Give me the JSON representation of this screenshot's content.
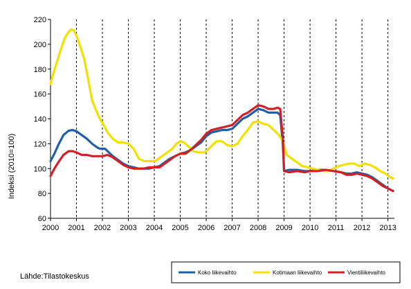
{
  "source": "Lähde:Tilastokeskus",
  "chart_data": {
    "type": "line",
    "ylabel": "Indeksi (2010=100)",
    "xlabel": "",
    "ylim": [
      60,
      220
    ],
    "xlim": [
      2000,
      2013.25
    ],
    "yticks": [
      60,
      80,
      100,
      120,
      140,
      160,
      180,
      200,
      220
    ],
    "xticks": [
      "2000",
      "2001",
      "2002",
      "2003",
      "2004",
      "2005",
      "2006",
      "2007",
      "2008",
      "2009",
      "2010",
      "2011",
      "2012",
      "2013"
    ],
    "grid": "vertical dashed lines at year boundaries",
    "legend_position": "bottom-right",
    "series": [
      {
        "name": "Koko liikevaihto",
        "color": "#1f5fa8",
        "points": [
          [
            2000.0,
            106
          ],
          [
            2000.15,
            112
          ],
          [
            2000.3,
            119
          ],
          [
            2000.5,
            127
          ],
          [
            2000.7,
            130.5
          ],
          [
            2000.85,
            131
          ],
          [
            2001.0,
            130
          ],
          [
            2001.2,
            127
          ],
          [
            2001.4,
            124
          ],
          [
            2001.6,
            120
          ],
          [
            2001.8,
            117
          ],
          [
            2001.9,
            116
          ],
          [
            2002.1,
            116
          ],
          [
            2002.2,
            114
          ],
          [
            2002.4,
            110
          ],
          [
            2002.6,
            107
          ],
          [
            2002.8,
            104
          ],
          [
            2003.0,
            102
          ],
          [
            2003.2,
            101
          ],
          [
            2003.4,
            100
          ],
          [
            2003.6,
            100
          ],
          [
            2003.8,
            100
          ],
          [
            2004.0,
            101
          ],
          [
            2004.2,
            102
          ],
          [
            2004.4,
            105
          ],
          [
            2004.6,
            108
          ],
          [
            2004.8,
            110
          ],
          [
            2005.0,
            112
          ],
          [
            2005.2,
            113
          ],
          [
            2005.4,
            115
          ],
          [
            2005.6,
            118
          ],
          [
            2005.8,
            121
          ],
          [
            2006.0,
            126
          ],
          [
            2006.2,
            129
          ],
          [
            2006.4,
            130
          ],
          [
            2006.6,
            131
          ],
          [
            2006.8,
            131
          ],
          [
            2007.0,
            132
          ],
          [
            2007.2,
            136
          ],
          [
            2007.4,
            140
          ],
          [
            2007.6,
            142
          ],
          [
            2007.8,
            145
          ],
          [
            2008.0,
            148
          ],
          [
            2008.2,
            147
          ],
          [
            2008.4,
            145
          ],
          [
            2008.6,
            145
          ],
          [
            2008.75,
            145
          ],
          [
            2008.85,
            143
          ],
          [
            2008.95,
            120
          ],
          [
            2009.0,
            98
          ],
          [
            2009.2,
            99
          ],
          [
            2009.5,
            99
          ],
          [
            2009.8,
            98
          ],
          [
            2010.0,
            98
          ],
          [
            2010.3,
            99
          ],
          [
            2010.6,
            99
          ],
          [
            2010.9,
            98
          ],
          [
            2011.2,
            97
          ],
          [
            2011.4,
            96
          ],
          [
            2011.6,
            96
          ],
          [
            2011.8,
            97
          ],
          [
            2012.0,
            96
          ],
          [
            2012.2,
            95
          ],
          [
            2012.4,
            93
          ],
          [
            2012.6,
            90
          ],
          [
            2012.8,
            87
          ],
          [
            2013.0,
            84
          ],
          [
            2013.2,
            82
          ]
        ]
      },
      {
        "name": "Kotimaan liikevaihto",
        "color": "#f2e000",
        "points": [
          [
            2000.0,
            168
          ],
          [
            2000.1,
            176
          ],
          [
            2000.25,
            186
          ],
          [
            2000.4,
            196
          ],
          [
            2000.55,
            205
          ],
          [
            2000.7,
            210
          ],
          [
            2000.8,
            212
          ],
          [
            2000.9,
            211
          ],
          [
            2001.0,
            207
          ],
          [
            2001.15,
            198
          ],
          [
            2001.3,
            188
          ],
          [
            2001.45,
            172
          ],
          [
            2001.6,
            155
          ],
          [
            2001.75,
            147
          ],
          [
            2001.9,
            140
          ],
          [
            2002.05,
            135
          ],
          [
            2002.2,
            129
          ],
          [
            2002.4,
            124
          ],
          [
            2002.6,
            121
          ],
          [
            2002.8,
            121
          ],
          [
            2003.0,
            120
          ],
          [
            2003.2,
            116
          ],
          [
            2003.4,
            108
          ],
          [
            2003.6,
            106
          ],
          [
            2003.8,
            106
          ],
          [
            2004.0,
            106
          ],
          [
            2004.1,
            107
          ],
          [
            2004.3,
            110
          ],
          [
            2004.5,
            113
          ],
          [
            2004.7,
            116
          ],
          [
            2004.85,
            120
          ],
          [
            2005.0,
            122
          ],
          [
            2005.15,
            121
          ],
          [
            2005.3,
            118
          ],
          [
            2005.5,
            114
          ],
          [
            2005.7,
            113
          ],
          [
            2005.9,
            113
          ],
          [
            2006.0,
            114
          ],
          [
            2006.2,
            118
          ],
          [
            2006.4,
            122
          ],
          [
            2006.6,
            122
          ],
          [
            2006.8,
            119
          ],
          [
            2007.0,
            118
          ],
          [
            2007.2,
            120
          ],
          [
            2007.4,
            126
          ],
          [
            2007.6,
            131
          ],
          [
            2007.8,
            137
          ],
          [
            2008.0,
            138
          ],
          [
            2008.2,
            136
          ],
          [
            2008.4,
            135
          ],
          [
            2008.6,
            131
          ],
          [
            2008.8,
            127
          ],
          [
            2008.95,
            122
          ],
          [
            2009.1,
            111
          ],
          [
            2009.3,
            108
          ],
          [
            2009.5,
            105
          ],
          [
            2009.7,
            102
          ],
          [
            2009.9,
            101
          ],
          [
            2010.1,
            100
          ],
          [
            2010.3,
            99
          ],
          [
            2010.5,
            98
          ],
          [
            2010.7,
            98
          ],
          [
            2010.9,
            100
          ],
          [
            2011.1,
            102
          ],
          [
            2011.3,
            103
          ],
          [
            2011.5,
            104
          ],
          [
            2011.7,
            104
          ],
          [
            2011.9,
            102
          ],
          [
            2012.1,
            104
          ],
          [
            2012.3,
            103
          ],
          [
            2012.5,
            101
          ],
          [
            2012.7,
            98
          ],
          [
            2012.9,
            96
          ],
          [
            2013.1,
            93
          ],
          [
            2013.2,
            92
          ]
        ]
      },
      {
        "name": "Vientiliikevaihto",
        "color": "#d22027",
        "points": [
          [
            2000.0,
            94
          ],
          [
            2000.15,
            100
          ],
          [
            2000.3,
            105
          ],
          [
            2000.5,
            111
          ],
          [
            2000.7,
            114
          ],
          [
            2000.85,
            114
          ],
          [
            2001.0,
            113
          ],
          [
            2001.2,
            111
          ],
          [
            2001.4,
            111
          ],
          [
            2001.6,
            110
          ],
          [
            2001.8,
            110
          ],
          [
            2002.0,
            110
          ],
          [
            2002.2,
            111
          ],
          [
            2002.4,
            109
          ],
          [
            2002.6,
            106
          ],
          [
            2002.8,
            103
          ],
          [
            2003.0,
            101
          ],
          [
            2003.2,
            100
          ],
          [
            2003.4,
            100
          ],
          [
            2003.6,
            100
          ],
          [
            2003.8,
            101
          ],
          [
            2004.0,
            101
          ],
          [
            2004.2,
            101
          ],
          [
            2004.4,
            104
          ],
          [
            2004.6,
            107
          ],
          [
            2004.8,
            110
          ],
          [
            2005.0,
            112
          ],
          [
            2005.2,
            112
          ],
          [
            2005.4,
            115
          ],
          [
            2005.6,
            119
          ],
          [
            2005.8,
            123
          ],
          [
            2006.0,
            128
          ],
          [
            2006.2,
            131
          ],
          [
            2006.4,
            132
          ],
          [
            2006.6,
            133
          ],
          [
            2006.8,
            134
          ],
          [
            2007.0,
            135
          ],
          [
            2007.2,
            139
          ],
          [
            2007.4,
            143
          ],
          [
            2007.6,
            145
          ],
          [
            2007.8,
            148
          ],
          [
            2008.0,
            151
          ],
          [
            2008.2,
            150
          ],
          [
            2008.4,
            148
          ],
          [
            2008.6,
            148
          ],
          [
            2008.75,
            149
          ],
          [
            2008.85,
            148
          ],
          [
            2008.95,
            125
          ],
          [
            2009.0,
            98
          ],
          [
            2009.2,
            97
          ],
          [
            2009.5,
            98
          ],
          [
            2009.8,
            97
          ],
          [
            2010.0,
            98
          ],
          [
            2010.3,
            98
          ],
          [
            2010.6,
            99
          ],
          [
            2010.9,
            98
          ],
          [
            2011.2,
            97
          ],
          [
            2011.4,
            95
          ],
          [
            2011.6,
            95
          ],
          [
            2011.8,
            96
          ],
          [
            2012.0,
            95
          ],
          [
            2012.2,
            94
          ],
          [
            2012.4,
            92
          ],
          [
            2012.6,
            89
          ],
          [
            2012.8,
            86
          ],
          [
            2013.0,
            84
          ],
          [
            2013.2,
            82
          ]
        ]
      }
    ]
  }
}
